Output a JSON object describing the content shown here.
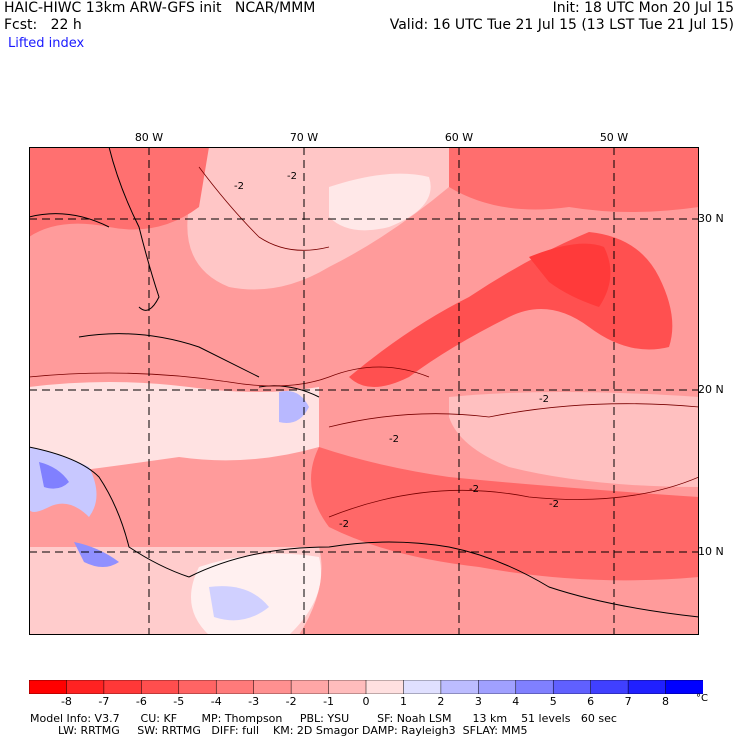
{
  "header": {
    "line1_left": "HAIC-HIWC 13km ARW-GFS init   NCAR/MMM",
    "line1_right": "Init: 18 UTC Mon 20 Jul 15",
    "line2_left": "Fcst:   22 h",
    "line2_right": "Valid: 16 UTC Tue 21 Jul 15 (13 LST Tue 21 Jul 15)",
    "field_name": "Lifted index"
  },
  "map": {
    "lon_labels": [
      "80 W",
      "70 W",
      "60 W",
      "50 W"
    ],
    "lat_labels": [
      "30 N",
      "20 N",
      "10 N"
    ],
    "contour_label": "-2",
    "colors": {
      "strong_negative": "#ff3f3f",
      "negative": "#ff8a8a",
      "weak_negative": "#ffc7c7",
      "near_zero": "#fff1f1",
      "positive": "#c8c8ff",
      "strong_positive": "#7878ff"
    }
  },
  "colorbar": {
    "ticks": [
      "-8",
      "-7",
      "-6",
      "-5",
      "-4",
      "-3",
      "-2",
      "-1",
      "0",
      "1",
      "2",
      "3",
      "4",
      "5",
      "6",
      "7",
      "8"
    ],
    "unit": "°C",
    "colors": [
      "#ff0000",
      "#ff2222",
      "#ff3838",
      "#ff4e4e",
      "#ff6464",
      "#ff7a7a",
      "#ff9090",
      "#ffa6a6",
      "#ffbcbc",
      "#ffe0e0",
      "#e0e0ff",
      "#bcbcff",
      "#a0a0ff",
      "#8080ff",
      "#6060ff",
      "#4040ff",
      "#2020ff",
      "#0000ff"
    ]
  },
  "model_info": {
    "line1": "Model Info: V3.7      CU: KF       MP: Thompson     PBL: YSU        SF: Noah LSM      13 km    51 levels   60 sec",
    "line2": "        LW: RRTMG     SW: RRTMG   DIFF: full    KM: 2D Smagor DAMP: Rayleigh3  SFLAY: MM5"
  }
}
